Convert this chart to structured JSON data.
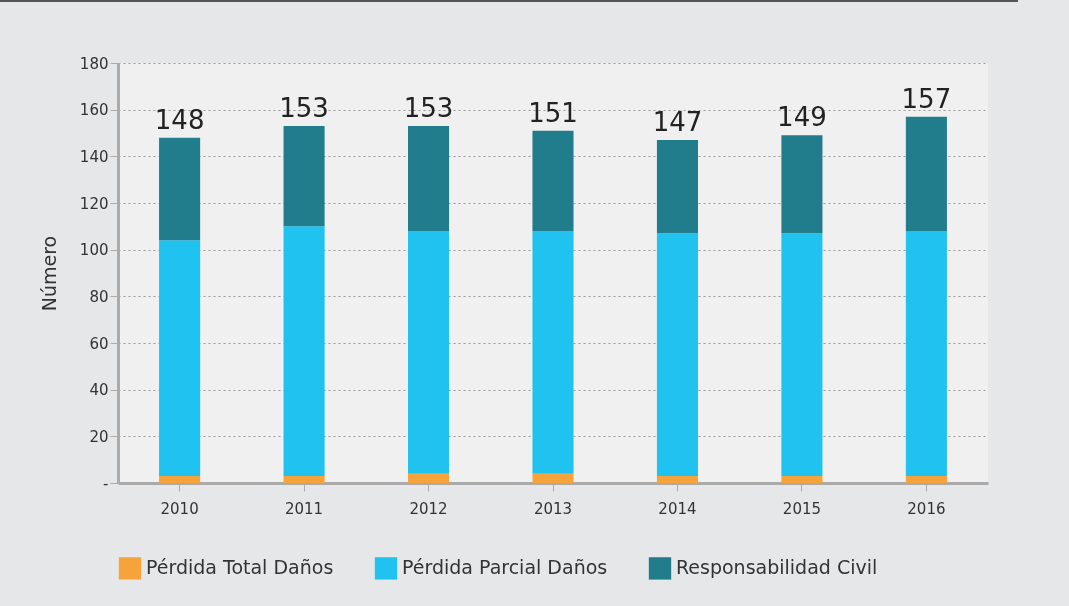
{
  "chart_data": {
    "type": "bar",
    "ylabel": "Número",
    "categories": [
      "2010",
      "2011",
      "2012",
      "2013",
      "2014",
      "2015",
      "2016"
    ],
    "stacked": true,
    "series": [
      {
        "name": "Pérdida Total Daños",
        "color": "#f7a33c",
        "values": [
          3,
          3,
          4,
          4,
          3,
          3,
          3
        ]
      },
      {
        "name": "Pérdida Parcial Daños",
        "color": "#20c3f0",
        "values": [
          101,
          107,
          104,
          104,
          104,
          104,
          105
        ]
      },
      {
        "name": "Responsabilidad Civil",
        "color": "#217c8c",
        "values": [
          44,
          43,
          45,
          43,
          40,
          42,
          49
        ]
      }
    ],
    "totals": [
      "148",
      "153",
      "153",
      "151",
      "147",
      "149",
      "157"
    ],
    "ylim": [
      0,
      180
    ],
    "yticks": [
      {
        "value": 0,
        "label": "-"
      },
      20,
      40,
      60,
      80,
      100,
      120,
      140,
      160,
      180
    ],
    "grid": "y",
    "legend": "bottom"
  }
}
